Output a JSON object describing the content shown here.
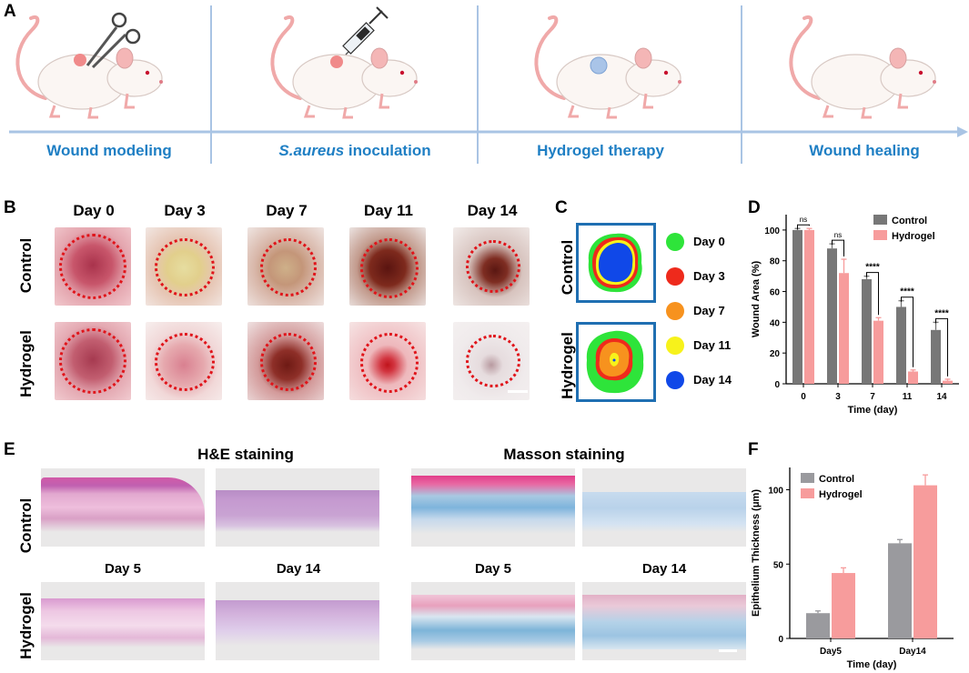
{
  "panel_letters": {
    "a": "A",
    "b": "B",
    "c": "C",
    "d": "D",
    "e": "E",
    "f": "F"
  },
  "panel_a": {
    "steps": [
      {
        "label": "Wound modeling"
      },
      {
        "italic": "S.aureus",
        "rest": " inoculation"
      },
      {
        "label": "Hydrogel therapy"
      },
      {
        "label": "Wound healing"
      }
    ],
    "colors": {
      "arrow": "#a9c4e4",
      "text": "#1f7fc4"
    }
  },
  "panel_b": {
    "days": [
      "Day 0",
      "Day 3",
      "Day 7",
      "Day 11",
      "Day 14"
    ],
    "rows": [
      "Control",
      "Hydrogel"
    ]
  },
  "panel_c": {
    "rows": [
      "Control",
      "Hydrogel"
    ],
    "legend": [
      {
        "label": "Day 0",
        "color": "#2ee43a"
      },
      {
        "label": "Day 3",
        "color": "#ee2a1c"
      },
      {
        "label": "Day 7",
        "color": "#f7921e"
      },
      {
        "label": "Day 11",
        "color": "#f7f21b"
      },
      {
        "label": "Day 14",
        "color": "#1048e8"
      }
    ]
  },
  "panel_e": {
    "stains": [
      "H&E staining",
      "Masson staining"
    ],
    "rows": [
      "Control",
      "Hydrogel"
    ],
    "days": [
      "Day 5",
      "Day 14",
      "Day 5",
      "Day 14"
    ]
  },
  "chart_data": [
    {
      "type": "bar",
      "panel": "D",
      "categories": [
        "0",
        "3",
        "7",
        "11",
        "14"
      ],
      "series": [
        {
          "name": "Control",
          "color": "#777777",
          "values": [
            100,
            88,
            68,
            50,
            35
          ],
          "errors": [
            1,
            3,
            2,
            4,
            5
          ]
        },
        {
          "name": "Hydrogel",
          "color": "#f79c9c",
          "values": [
            100,
            72,
            41,
            8,
            2
          ],
          "errors": [
            1,
            9,
            2,
            1,
            1
          ]
        }
      ],
      "xlabel": "Time (day)",
      "ylabel": "Wound Area (%)",
      "ylim": [
        0,
        110
      ],
      "yticks": [
        0,
        20,
        40,
        60,
        80,
        100
      ],
      "significance": [
        "ns",
        "ns",
        "****",
        "****",
        "****"
      ],
      "legend_position": "top-right"
    },
    {
      "type": "bar",
      "panel": "F",
      "categories": [
        "Day5",
        "Day14"
      ],
      "series": [
        {
          "name": "Control",
          "color": "#9a9a9e",
          "values": [
            17,
            64
          ],
          "errors": [
            1.5,
            2.5
          ]
        },
        {
          "name": "Hydrogel",
          "color": "#f79c9c",
          "values": [
            44,
            103
          ],
          "errors": [
            3.5,
            7
          ]
        }
      ],
      "xlabel": "Time (day)",
      "ylabel": "Epithelium Thickness (μm)",
      "ylim": [
        0,
        115
      ],
      "yticks": [
        0,
        50,
        100
      ],
      "legend_position": "top-left"
    }
  ]
}
